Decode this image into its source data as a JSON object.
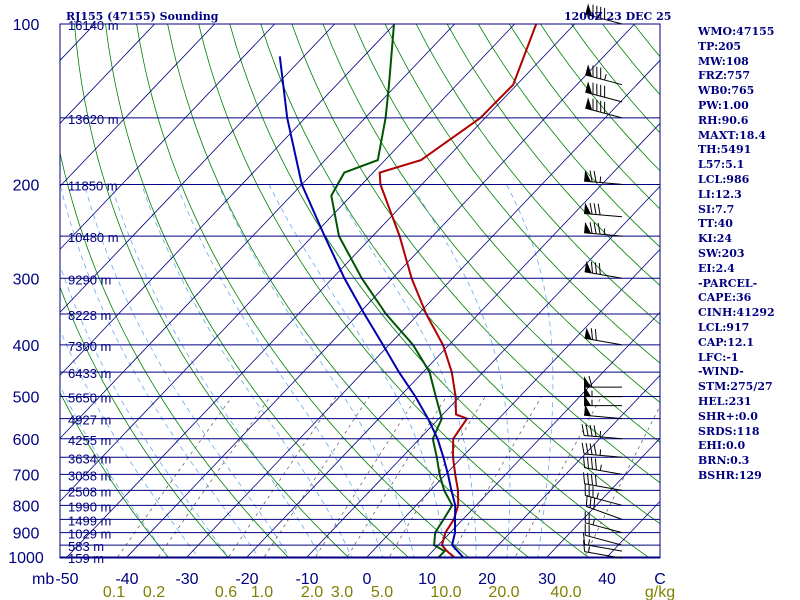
{
  "header": {
    "station": "RJ155 (47155) Sounding",
    "time": "1200Z 23 DEC 25"
  },
  "indices": [
    "WMO:47155",
    "TP:205",
    "MW:108",
    "FRZ:757",
    "WB0:765",
    "PW:1.00",
    "RH:90.6",
    "MAXT:18.4",
    "TH:5491",
    "L57:5.1",
    "LCL:986",
    "LI:12.3",
    "SI:7.7",
    "TT:40",
    "KI:24",
    "SW:203",
    "EI:2.4",
    "-PARCEL-",
    "CAPE:36",
    "CINH:41292",
    "LCL:917",
    "CAP:12.1",
    "LFC:-1",
    "-WIND-",
    "STM:275/27",
    "HEL:231",
    "SHR+:0.0",
    "SRDS:118",
    "EHI:0.0",
    "BRN:0.3",
    "BSHR:129"
  ],
  "colors": {
    "isobar": "#000080",
    "isotherm": "#000080",
    "dry_adiabat": "#008000",
    "moist_adiabat": "#66aaee",
    "mixing_ratio": "#666666",
    "temperature": "#b00000",
    "dewpoint": "#005500",
    "parcel": "#0000b0",
    "axis_text": "#000080",
    "mixing_text": "#808000"
  },
  "chart_data": {
    "type": "line",
    "title": "RJ155 (47155) Sounding",
    "y_axis": {
      "label": "mb",
      "scale": "log",
      "range": [
        1000,
        100
      ],
      "pressure_ticks": [
        100,
        200,
        300,
        400,
        500,
        600,
        700,
        800,
        900,
        1000
      ],
      "tick_labels": [
        "100",
        "200",
        "300",
        "400",
        "500",
        "600",
        "700",
        "800",
        "900",
        "1000"
      ]
    },
    "x_axis": {
      "label": "C",
      "range": [
        -50,
        50
      ],
      "ticks": [
        -50,
        -40,
        -30,
        -20,
        -10,
        0,
        10,
        20,
        30,
        40
      ],
      "tick_labels": [
        "-50",
        "-40",
        "-30",
        "-20",
        "-10",
        "0",
        "10",
        "20",
        "30",
        "40"
      ]
    },
    "mixing_ratio_axis": {
      "unit": "g/kg",
      "values": [
        0.1,
        0.2,
        0.6,
        1.0,
        2.0,
        3.0,
        5.0,
        10.0,
        20.0,
        40.0
      ],
      "labels": [
        "0.1",
        "0.2",
        "0.6",
        "1.0",
        "2.0",
        "3.0",
        "5.0",
        "10.0",
        "20.0",
        "40.0"
      ]
    },
    "height_labels": [
      {
        "p": 100,
        "label": "16140 m"
      },
      {
        "p": 150,
        "label": "13620 m"
      },
      {
        "p": 200,
        "label": "11850 m"
      },
      {
        "p": 250,
        "label": "10480 m"
      },
      {
        "p": 300,
        "label": "9290 m"
      },
      {
        "p": 350,
        "label": "8228 m"
      },
      {
        "p": 400,
        "label": "7300 m"
      },
      {
        "p": 450,
        "label": "6433 m"
      },
      {
        "p": 500,
        "label": "5650 m"
      },
      {
        "p": 550,
        "label": "4927 m"
      },
      {
        "p": 600,
        "label": "4255 m"
      },
      {
        "p": 650,
        "label": "3634 m"
      },
      {
        "p": 700,
        "label": "3058 m"
      },
      {
        "p": 750,
        "label": "2508 m"
      },
      {
        "p": 800,
        "label": "1990 m"
      },
      {
        "p": 850,
        "label": "1499 m"
      },
      {
        "p": 900,
        "label": "1029 m"
      },
      {
        "p": 950,
        "label": "583 m"
      },
      {
        "p": 1000,
        "label": "159 m"
      }
    ],
    "series": [
      {
        "key": "temperature",
        "points": [
          {
            "p": 1012,
            "t": 15.5
          },
          {
            "p": 1000,
            "t": 14.5
          },
          {
            "p": 975,
            "t": 12.4
          },
          {
            "p": 950,
            "t": 10.6
          },
          {
            "p": 900,
            "t": 9.2
          },
          {
            "p": 850,
            "t": 8.5
          },
          {
            "p": 800,
            "t": 7.0
          },
          {
            "p": 750,
            "t": 4.6
          },
          {
            "p": 700,
            "t": 1.6
          },
          {
            "p": 650,
            "t": -1.5
          },
          {
            "p": 600,
            "t": -4.4
          },
          {
            "p": 550,
            "t": -5.3
          },
          {
            "p": 540,
            "t": -7.8
          },
          {
            "p": 500,
            "t": -10.7
          },
          {
            "p": 450,
            "t": -15.2
          },
          {
            "p": 400,
            "t": -21.0
          },
          {
            "p": 350,
            "t": -28.7
          },
          {
            "p": 300,
            "t": -36.8
          },
          {
            "p": 250,
            "t": -45.5
          },
          {
            "p": 200,
            "t": -56.9
          },
          {
            "p": 190,
            "t": -58.9
          },
          {
            "p": 180,
            "t": -54.0
          },
          {
            "p": 150,
            "t": -50.8
          },
          {
            "p": 130,
            "t": -50.6
          },
          {
            "p": 100,
            "t": -56.4
          }
        ]
      },
      {
        "key": "dewpoint",
        "points": [
          {
            "p": 1012,
            "t": 11.0
          },
          {
            "p": 1000,
            "t": 12.0
          },
          {
            "p": 975,
            "t": 12.0
          },
          {
            "p": 950,
            "t": 9.3
          },
          {
            "p": 900,
            "t": 7.5
          },
          {
            "p": 850,
            "t": 6.8
          },
          {
            "p": 800,
            "t": 6.0
          },
          {
            "p": 750,
            "t": 2.3
          },
          {
            "p": 700,
            "t": -1.0
          },
          {
            "p": 650,
            "t": -4.2
          },
          {
            "p": 600,
            "t": -7.8
          },
          {
            "p": 550,
            "t": -9.5
          },
          {
            "p": 500,
            "t": -14.0
          },
          {
            "p": 450,
            "t": -18.9
          },
          {
            "p": 400,
            "t": -26.0
          },
          {
            "p": 350,
            "t": -35.4
          },
          {
            "p": 300,
            "t": -45.1
          },
          {
            "p": 250,
            "t": -55.6
          },
          {
            "p": 210,
            "t": -63.3
          },
          {
            "p": 190,
            "t": -64.8
          },
          {
            "p": 180,
            "t": -61.2
          },
          {
            "p": 150,
            "t": -66.6
          },
          {
            "p": 130,
            "t": -71.3
          },
          {
            "p": 100,
            "t": -80.1
          }
        ]
      },
      {
        "key": "parcel",
        "points": [
          {
            "p": 1000,
            "t": 16.0
          },
          {
            "p": 950,
            "t": 12.3
          },
          {
            "p": 900,
            "t": 10.8
          },
          {
            "p": 850,
            "t": 8.7
          },
          {
            "p": 800,
            "t": 6.5
          },
          {
            "p": 750,
            "t": 3.5
          },
          {
            "p": 700,
            "t": 0.4
          },
          {
            "p": 650,
            "t": -3.1
          },
          {
            "p": 600,
            "t": -7.0
          },
          {
            "p": 550,
            "t": -11.8
          },
          {
            "p": 500,
            "t": -17.4
          },
          {
            "p": 450,
            "t": -24.0
          },
          {
            "p": 400,
            "t": -31.0
          },
          {
            "p": 350,
            "t": -39.0
          },
          {
            "p": 300,
            "t": -48.0
          },
          {
            "p": 250,
            "t": -58.0
          },
          {
            "p": 200,
            "t": -70.0
          },
          {
            "p": 150,
            "t": -83.0
          },
          {
            "p": 115,
            "t": -94.0
          }
        ]
      }
    ],
    "wind_barbs": [
      {
        "p": 1005,
        "dir": 280,
        "speed": 15
      },
      {
        "p": 975,
        "dir": 280,
        "speed": 15
      },
      {
        "p": 950,
        "dir": 285,
        "speed": 20
      },
      {
        "p": 900,
        "dir": 285,
        "speed": 25
      },
      {
        "p": 850,
        "dir": 290,
        "speed": 30
      },
      {
        "p": 800,
        "dir": 285,
        "speed": 35
      },
      {
        "p": 750,
        "dir": 280,
        "speed": 40
      },
      {
        "p": 700,
        "dir": 280,
        "speed": 45
      },
      {
        "p": 650,
        "dir": 275,
        "speed": 45
      },
      {
        "p": 600,
        "dir": 275,
        "speed": 45
      },
      {
        "p": 550,
        "dir": 275,
        "speed": 50
      },
      {
        "p": 520,
        "dir": 270,
        "speed": 55
      },
      {
        "p": 500,
        "dir": 270,
        "speed": 55
      },
      {
        "p": 480,
        "dir": 270,
        "speed": 60
      },
      {
        "p": 400,
        "dir": 280,
        "speed": 70
      },
      {
        "p": 300,
        "dir": 280,
        "speed": 80
      },
      {
        "p": 250,
        "dir": 275,
        "speed": 85
      },
      {
        "p": 230,
        "dir": 275,
        "speed": 80
      },
      {
        "p": 200,
        "dir": 275,
        "speed": 75
      },
      {
        "p": 150,
        "dir": 285,
        "speed": 90
      },
      {
        "p": 140,
        "dir": 285,
        "speed": 90
      },
      {
        "p": 130,
        "dir": 285,
        "speed": 85
      },
      {
        "p": 100,
        "dir": 285,
        "speed": 90
      }
    ]
  }
}
